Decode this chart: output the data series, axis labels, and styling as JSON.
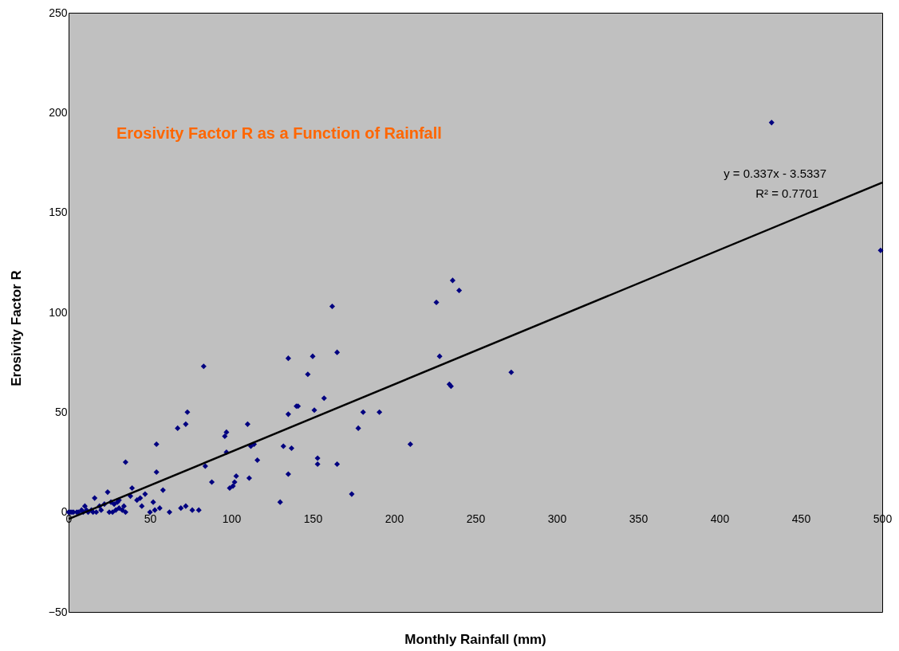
{
  "chart_data": {
    "type": "scatter",
    "title": "Erosivity Factor R as a Function of Rainfall",
    "xlabel": "Monthly Rainfall (mm)",
    "ylabel": "Erosivity Factor R",
    "annotations": [
      "y = 0.337x - 3.5337",
      "R² = 0.7701"
    ],
    "xlim": [
      0,
      500
    ],
    "xticks": [
      0,
      50,
      100,
      150,
      200,
      250,
      300,
      350,
      400,
      450,
      500
    ],
    "ylim": [
      -50,
      250
    ],
    "yticks": [
      -50,
      0,
      50,
      100,
      150,
      200,
      250
    ],
    "grid": false,
    "series": [
      {
        "marker": "diamond",
        "color": "#000080",
        "x": [
          432,
          499,
          236,
          240,
          162,
          226,
          228,
          165,
          135,
          150,
          83,
          272,
          147,
          234,
          235,
          157,
          140,
          141,
          73,
          181,
          191,
          135,
          151,
          72,
          110,
          67,
          178,
          97,
          96,
          114,
          54,
          112,
          132,
          210,
          137,
          97,
          116,
          35,
          153,
          153,
          165,
          84,
          54,
          135,
          103,
          111,
          88,
          102,
          101,
          99,
          39,
          58,
          24,
          47,
          38,
          174,
          42,
          44,
          16,
          30,
          52,
          130,
          28,
          34,
          45,
          72,
          69,
          56,
          53,
          31,
          22,
          19,
          10,
          76,
          80,
          62,
          50,
          35,
          25,
          20,
          15,
          12,
          8,
          5,
          3,
          1,
          0,
          2,
          6,
          9,
          11,
          14,
          17,
          27,
          29,
          33,
          26,
          31
        ],
        "values": [
          195,
          131,
          116,
          111,
          103,
          105,
          78,
          80,
          77,
          78,
          73,
          70,
          69,
          64,
          63,
          57,
          53,
          53,
          50,
          50,
          50,
          49,
          51,
          44,
          44,
          42,
          42,
          40,
          38,
          34,
          34,
          33,
          33,
          34,
          32,
          30,
          26,
          25,
          27,
          24,
          24,
          23,
          20,
          19,
          18,
          17,
          15,
          15,
          13,
          12,
          12,
          11,
          10,
          9,
          8,
          9,
          6,
          7,
          7,
          5,
          5,
          5,
          4,
          3,
          3,
          3,
          2,
          2,
          1,
          2,
          4,
          3,
          3,
          1,
          1,
          0,
          0,
          0,
          0,
          1,
          0,
          0,
          1,
          0,
          0,
          0,
          0,
          0,
          0,
          0,
          1,
          1,
          0,
          0,
          1,
          1,
          5,
          6
        ]
      },
      {
        "type": "line",
        "line_style": "solid",
        "color": "#000000",
        "x": [
          0,
          500
        ],
        "values": [
          -3.5,
          165
        ]
      }
    ]
  }
}
